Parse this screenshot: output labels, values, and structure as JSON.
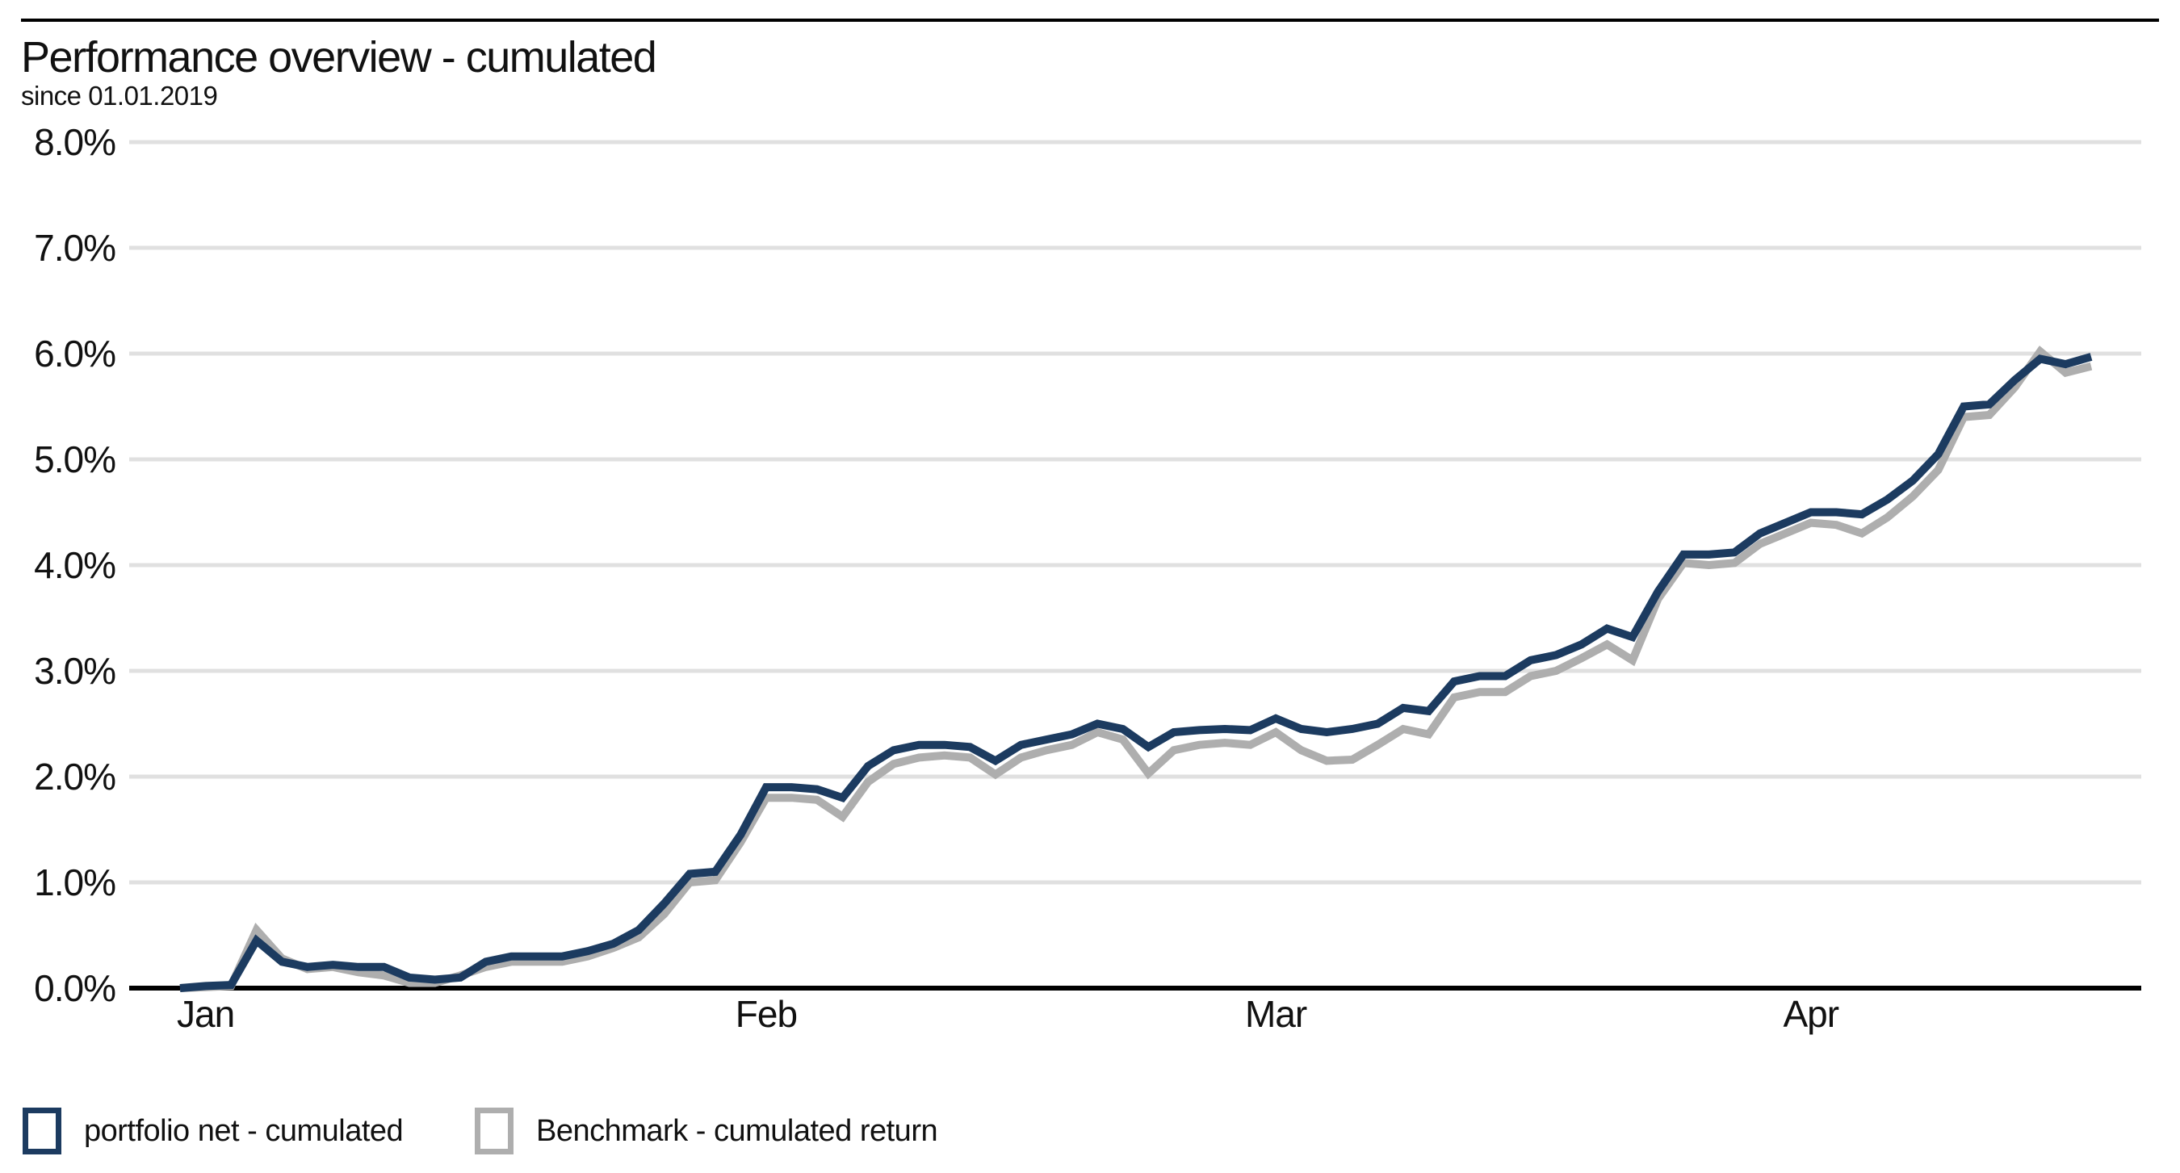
{
  "header": {
    "title": "Performance overview - cumulated",
    "subtitle": "since 01.01.2019"
  },
  "colors": {
    "portfolio_line": "#1c3b60",
    "benchmark_line": "#aeaeae",
    "gridline": "#e0e0e0",
    "axis_line": "#000000",
    "text": "#111111",
    "background": "#ffffff"
  },
  "chart_data": {
    "type": "line",
    "title": "Performance overview - cumulated",
    "subtitle": "since 01.01.2019",
    "ylim": [
      0,
      8
    ],
    "y_unit": "%",
    "y_tick_labels": [
      "0.0%",
      "1.0%",
      "2.0%",
      "3.0%",
      "4.0%",
      "5.0%",
      "6.0%",
      "7.0%",
      "8.0%"
    ],
    "x_tick_labels": [
      {
        "label": "Jan",
        "date": "2019-01-02"
      },
      {
        "label": "Feb",
        "date": "2019-02-01"
      },
      {
        "label": "Mar",
        "date": "2019-03-01"
      },
      {
        "label": "Apr",
        "date": "2019-04-01"
      }
    ],
    "grid": "horizontal",
    "legend_position": "bottom-left",
    "x": [
      "2019-01-01",
      "2019-01-02",
      "2019-01-03",
      "2019-01-04",
      "2019-01-07",
      "2019-01-08",
      "2019-01-09",
      "2019-01-10",
      "2019-01-11",
      "2019-01-14",
      "2019-01-15",
      "2019-01-16",
      "2019-01-17",
      "2019-01-18",
      "2019-01-21",
      "2019-01-22",
      "2019-01-23",
      "2019-01-24",
      "2019-01-25",
      "2019-01-28",
      "2019-01-29",
      "2019-01-30",
      "2019-01-31",
      "2019-02-01",
      "2019-02-04",
      "2019-02-05",
      "2019-02-06",
      "2019-02-07",
      "2019-02-08",
      "2019-02-11",
      "2019-02-12",
      "2019-02-13",
      "2019-02-14",
      "2019-02-15",
      "2019-02-18",
      "2019-02-19",
      "2019-02-20",
      "2019-02-21",
      "2019-02-22",
      "2019-02-25",
      "2019-02-26",
      "2019-02-27",
      "2019-02-28",
      "2019-03-01",
      "2019-03-04",
      "2019-03-05",
      "2019-03-06",
      "2019-03-07",
      "2019-03-08",
      "2019-03-11",
      "2019-03-12",
      "2019-03-13",
      "2019-03-14",
      "2019-03-15",
      "2019-03-18",
      "2019-03-19",
      "2019-03-20",
      "2019-03-21",
      "2019-03-22",
      "2019-03-25",
      "2019-03-26",
      "2019-03-27",
      "2019-03-28",
      "2019-03-29",
      "2019-04-01",
      "2019-04-02",
      "2019-04-03",
      "2019-04-04",
      "2019-04-05",
      "2019-04-08",
      "2019-04-09",
      "2019-04-10",
      "2019-04-11",
      "2019-04-12",
      "2019-04-15",
      "2019-04-16"
    ],
    "series": [
      {
        "name": "portfolio net - cumulated",
        "color": "#1c3b60",
        "values": [
          0.0,
          0.02,
          0.03,
          0.45,
          0.25,
          0.2,
          0.22,
          0.2,
          0.2,
          0.1,
          0.08,
          0.1,
          0.25,
          0.3,
          0.3,
          0.3,
          0.35,
          0.42,
          0.55,
          0.8,
          1.08,
          1.1,
          1.45,
          1.9,
          1.9,
          1.88,
          1.8,
          2.1,
          2.25,
          2.3,
          2.3,
          2.28,
          2.15,
          2.3,
          2.35,
          2.4,
          2.5,
          2.45,
          2.28,
          2.42,
          2.44,
          2.45,
          2.44,
          2.55,
          2.45,
          2.42,
          2.45,
          2.5,
          2.65,
          2.62,
          2.9,
          2.95,
          2.95,
          3.1,
          3.15,
          3.25,
          3.4,
          3.32,
          3.75,
          4.1,
          4.1,
          4.12,
          4.3,
          4.4,
          4.5,
          4.5,
          4.48,
          4.62,
          4.8,
          5.05,
          5.5,
          5.52,
          5.75,
          5.95,
          5.9,
          5.97
        ]
      },
      {
        "name": "Benchmark - cumulated return",
        "color": "#aeaeae",
        "values": [
          0.0,
          0.01,
          0.02,
          0.55,
          0.28,
          0.18,
          0.2,
          0.15,
          0.12,
          0.05,
          0.05,
          0.12,
          0.2,
          0.25,
          0.25,
          0.25,
          0.3,
          0.38,
          0.48,
          0.7,
          1.0,
          1.02,
          1.38,
          1.8,
          1.8,
          1.78,
          1.62,
          1.95,
          2.12,
          2.18,
          2.2,
          2.18,
          2.02,
          2.18,
          2.25,
          2.3,
          2.42,
          2.35,
          2.03,
          2.25,
          2.3,
          2.32,
          2.3,
          2.42,
          2.25,
          2.15,
          2.16,
          2.3,
          2.45,
          2.4,
          2.75,
          2.8,
          2.8,
          2.95,
          3.0,
          3.12,
          3.25,
          3.1,
          3.68,
          4.02,
          4.0,
          4.02,
          4.2,
          4.3,
          4.4,
          4.38,
          4.3,
          4.45,
          4.65,
          4.9,
          5.4,
          5.42,
          5.68,
          6.02,
          5.82,
          5.88
        ]
      }
    ]
  }
}
